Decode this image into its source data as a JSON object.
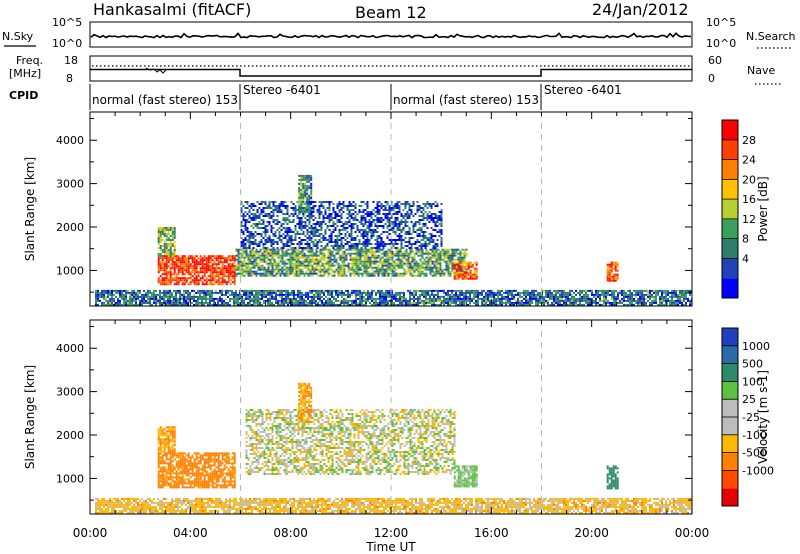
{
  "header": {
    "station": "Hankasalmi (fitACF)",
    "beam": "Beam 12",
    "date": "24/Jan/2012"
  },
  "noise_panel": {
    "left_label": "N.Sky",
    "right_label": "N.Search",
    "left_ticks": [
      "10^5",
      "10^0"
    ],
    "right_ticks": [
      "10^5",
      "10^0"
    ]
  },
  "freq_panel": {
    "left_label_1": "Freq.",
    "left_label_2": "[MHz]",
    "left_ticks": [
      "18",
      "8"
    ],
    "right_label": "Nave",
    "right_ticks": [
      "60",
      "0"
    ]
  },
  "cpid": {
    "label": "CPID",
    "segments": [
      {
        "text": "normal (fast stereo) 153",
        "start": "00:00"
      },
      {
        "text": "Stereo -6401",
        "start": "06:00"
      },
      {
        "text": "normal (fast stereo) 153",
        "start": "12:00"
      },
      {
        "text": "Stereo -6401",
        "start": "18:00"
      }
    ]
  },
  "time_axis": {
    "label": "Time UT",
    "ticks": [
      "00:00",
      "04:00",
      "08:00",
      "12:00",
      "16:00",
      "20:00",
      "00:00"
    ]
  },
  "power_panel": {
    "ylabel": "Slant Range [km]",
    "yticks": [
      "4000",
      "3000",
      "2000",
      "1000"
    ],
    "colorbar_label": "Power [dB]",
    "colorbar_ticks": [
      "28",
      "24",
      "20",
      "16",
      "12",
      "8",
      "4"
    ],
    "colors": [
      "#0000ff",
      "#1e44b8",
      "#2e7d6a",
      "#3aa05a",
      "#b8d130",
      "#ffc000",
      "#ff8000",
      "#ff4000",
      "#ff0000"
    ]
  },
  "velocity_panel": {
    "ylabel": "Slant Range [km]",
    "yticks": [
      "4000",
      "3000",
      "2000",
      "1000"
    ],
    "colorbar_label": "Velocity [m s-1]",
    "colorbar_ticks": [
      "1000",
      "500",
      "100",
      "25",
      "-25",
      "-100",
      "-500",
      "-1000"
    ],
    "colors": [
      "#1f3fbf",
      "#2a6aa8",
      "#2e8a6a",
      "#5cc040",
      "#bdbdbd",
      "#bdbdbd",
      "#ffb800",
      "#ff8000",
      "#ff4a00",
      "#e60000"
    ]
  },
  "chart_data": [
    {
      "type": "heatmap",
      "title": "Power",
      "xlabel": "Time UT",
      "ylabel": "Slant Range [km]",
      "xlim": [
        0,
        24
      ],
      "ylim": [
        180,
        4650
      ],
      "colorbar": {
        "label": "Power [dB]",
        "range": [
          0,
          32
        ]
      },
      "regions": [
        {
          "t_start": 2.7,
          "t_end": 5.8,
          "range_start": 700,
          "range_end": 1350,
          "value_db": 28
        },
        {
          "t_start": 2.7,
          "t_end": 3.4,
          "range_start": 1350,
          "range_end": 2000,
          "value_db": 14
        },
        {
          "t_start": 5.8,
          "t_end": 15.0,
          "range_start": 900,
          "range_end": 1500,
          "value_db": 12
        },
        {
          "t_start": 6.0,
          "t_end": 14.0,
          "range_start": 1500,
          "range_end": 2600,
          "value_db": 6
        },
        {
          "t_start": 8.3,
          "t_end": 8.8,
          "range_start": 2300,
          "range_end": 3200,
          "value_db": 10
        },
        {
          "t_start": 14.5,
          "t_end": 15.4,
          "range_start": 800,
          "range_end": 1200,
          "value_db": 26
        },
        {
          "t_start": 20.6,
          "t_end": 21.0,
          "range_start": 750,
          "range_end": 1200,
          "value_db": 26
        },
        {
          "t_start": 0.2,
          "t_end": 24.0,
          "range_start": 200,
          "range_end": 550,
          "value_db": 8
        }
      ]
    },
    {
      "type": "heatmap",
      "title": "Velocity",
      "xlabel": "Time UT",
      "ylabel": "Slant Range [km]",
      "xlim": [
        0,
        24
      ],
      "ylim": [
        180,
        4650
      ],
      "colorbar": {
        "label": "Velocity [m s-1]",
        "range": [
          -1000,
          1000
        ]
      },
      "regions": [
        {
          "t_start": 2.7,
          "t_end": 5.8,
          "range_start": 800,
          "range_end": 1600,
          "value_ms": -150
        },
        {
          "t_start": 2.7,
          "t_end": 3.4,
          "range_start": 1600,
          "range_end": 2200,
          "value_ms": -100
        },
        {
          "t_start": 6.2,
          "t_end": 14.5,
          "range_start": 1100,
          "range_end": 2600,
          "value_ms": 0
        },
        {
          "t_start": 8.3,
          "t_end": 8.8,
          "range_start": 2300,
          "range_end": 3200,
          "value_ms": -100
        },
        {
          "t_start": 14.5,
          "t_end": 15.4,
          "range_start": 800,
          "range_end": 1300,
          "value_ms": 40
        },
        {
          "t_start": 20.6,
          "t_end": 21.0,
          "range_start": 750,
          "range_end": 1300,
          "value_ms": 300
        },
        {
          "t_start": 0.2,
          "t_end": 24.0,
          "range_start": 200,
          "range_end": 550,
          "value_ms": -50
        }
      ]
    }
  ]
}
